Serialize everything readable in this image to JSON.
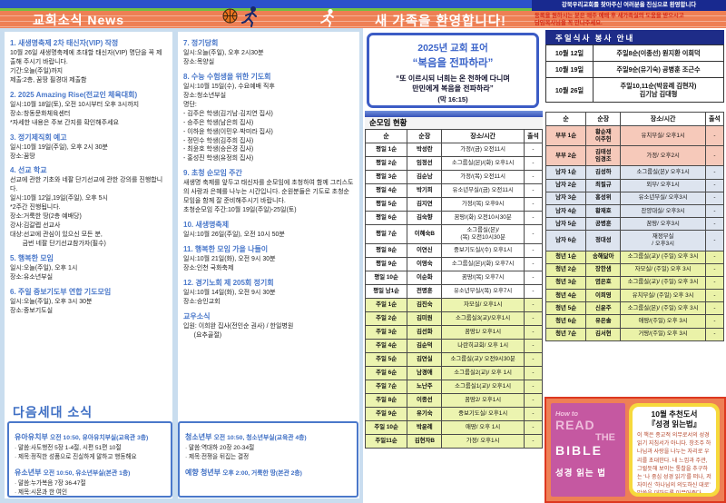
{
  "header": {
    "news_title": "교회소식 News",
    "welcome_banner": "새 가족을 환영합니다!",
    "welcome_line1": "강북우리교회를 찾아주신 여러분을 진심으로 환영합니다",
    "welcome_line2": "등록을 원하시는 분은 매주 예배 후 새가족실의 도움을 받으시고\n담임목사님을 꼭 만나주세요."
  },
  "news_col1": [
    {
      "title": "1. 새생명축제 2차 태신자(VIP) 작정",
      "lines": [
        " 10월 26일 새생명축제에 초대할 태신자(VIP) 명단을 꼭 제출해 주시기 바랍니다.",
        "기간:오늘(주일)까지",
        "제출:2층, 꿈땅 필경대 제출함"
      ]
    },
    {
      "title": "2. 2025 Amazing Rise(전교인 체육대회)",
      "lines": [
        "일시:10월 18일(토), 오전 10시부터 오후 3시까지",
        "장소:창동문화체육센터",
        "*자세한 내용은 주보 간지를 확인해주세요"
      ]
    },
    {
      "title": "3. 정기제직회 예고",
      "lines": [
        "일시:10월 19일(주일), 오후 2시 30분",
        "장소:꿈땅"
      ]
    },
    {
      "title": "4. 선교 학교",
      "lines": [
        " 선교에 관한 기초와 네팔 단기선교에 관한 강의를 진행합니다.",
        "일시:10월 12일,19일(주일), 오후 5시",
        "*2주간 진행됩니다.",
        "장소:거룩한 땅(2층 예배당)",
        "강사:김갈렙 선교사",
        "대상:선교에 관심이 있으신 모든 분,\n       금번 네팔 단기선교참가자(필수)"
      ]
    },
    {
      "title": "5. 행복한 모임",
      "lines": [
        "일시:오늘(주일), 오후 1시",
        "장소:유소년부실"
      ]
    },
    {
      "title": "6. 주일 중보기도부 연합 기도모임",
      "lines": [
        "일시:오늘(주일), 오후 3시 30분",
        "장소:중보기도실"
      ]
    }
  ],
  "news_col2": [
    {
      "title": "7. 정기당회",
      "lines": [
        "일시:오늘(주일), 오후 2시30분",
        "장소:목양실"
      ]
    },
    {
      "title": "8. 수능 수험생을 위한 기도회",
      "lines": [
        "일시:10월 15일(수), 수요예배 직후",
        "장소:청소년부실",
        "명단:",
        "- 김주은 학생(김기남·김지연 집사)\n- 승주은 학생(남은희 집사)\n- 이하윤 학생(이민우·박미라 집사)\n- 정민수 학생(김주희 집사)\n- 최윤호 학생(승은경 집사)\n- 홍성진 학생(유정희 집사)"
      ]
    },
    {
      "title": "9. 초청 순모임 주간",
      "lines": [
        " 새생명 축제를 앞두고 태신자를 순모임에 초청하여 함께 그리스도의 사랑과 은혜를 나누는 시간입니다. 순원분들은 기도로 초청순모임을 함께 잘 준비해주시기 바랍니다.",
        "초청순모임 주간:10월 19일(주일)-25일(토)"
      ]
    },
    {
      "title": "10. 새생명축제",
      "lines": [
        "일시:10월 26일(주일), 오전 10시 50분"
      ]
    },
    {
      "title": "11. 행복한 모임 가을 나들이",
      "lines": [
        "일시:10월 21일(화), 오전 9시 30분",
        "장소:인천 국화축제"
      ]
    },
    {
      "title": "12. 경기노회 제 205회 정기회",
      "lines": [
        "일시:10월 14일(화), 오전 9시 30분",
        "장소:승인교회"
      ]
    },
    {
      "title": "교우소식",
      "lines": [
        "입원: 이희완 집사(전인순 권사) / 한일병원\n      (요추골절)"
      ]
    }
  ],
  "next_gen": {
    "title": "다음세대 소식",
    "left_groups": [
      {
        "name": "유아유치부",
        "info": "오전 10:50, 유아유치부실(교육관 3층)",
        "lines": [
          "· 말씀:사도행전 5장 1-4절, 시편 51편 10절",
          "· 제목:정직한 성품으로 진실하게 말하고 행동해요"
        ]
      },
      {
        "name": "유소년부",
        "info": "오전 10:50, 유소년부실(본관 1층)",
        "lines": [
          "· 말씀:누가복음 7장 36-47절",
          "· 제목:시몬과 한 여인"
        ]
      }
    ],
    "right_groups": [
      {
        "name": "청소년부",
        "info": "오전 10:50, 청소년부실(교육관 4층)",
        "lines": [
          "· 말씀:역대하 20장 20-34절",
          "· 제목:전쟁을 뒤집는 결정"
        ]
      },
      {
        "name": "예향 청년부",
        "info": "오후 2:00, 거룩한 땅(본관 2층)",
        "lines": []
      }
    ]
  },
  "motto": {
    "line1": "2025년 교회 표어",
    "line2": "“복음을 전파하라”",
    "quote": "“또 이르시되 너희는 온 천하에 다니며\n만민에게 복음을 전파하라”",
    "ref": "(막 16:15)"
  },
  "meal": {
    "title": "주일식사 봉사 안내",
    "rows": [
      {
        "date": "10월 12일",
        "crew": "주일8순(이종선)  원지환 이희덕"
      },
      {
        "date": "10월 19일",
        "crew": "주일9순(유기숙)  공병훈 조근수"
      },
      {
        "date": "10월 26일",
        "crew": "주일10,11순(박윤례 김현자)\n김기남 김대형"
      }
    ]
  },
  "groups_main": {
    "title": "순모임 현황",
    "headers": [
      "순",
      "순장",
      "장소/시간",
      "출석"
    ],
    "rows": [
      {
        "no": "평일 1순",
        "leader": "박성란",
        "place": "가정/(금) 오전11시",
        "att": "-",
        "type": "weekday"
      },
      {
        "no": "평일 2순",
        "leader": "임정선",
        "place": "소그룹실(본)/(화) 오후1시",
        "att": "-",
        "type": "weekday"
      },
      {
        "no": "평일 3순",
        "leader": "김순남",
        "place": "가정/(목) 오전11시",
        "att": "-",
        "type": "weekday"
      },
      {
        "no": "평일 4순",
        "leader": "박기희",
        "place": "유소년부실/(금) 오전11시",
        "att": "-",
        "type": "weekday"
      },
      {
        "no": "평일 5순",
        "leader": "김지연",
        "place": "가정/(목) 오후9시",
        "att": "-",
        "type": "weekday"
      },
      {
        "no": "평일 6순",
        "leader": "김숙향",
        "place": "꿈땅/(화) 오전10시30분",
        "att": "-",
        "type": "weekday"
      },
      {
        "no": "평일 7순",
        "leader": "이혜숙B",
        "place": "소그룹실(본)/\n(목) 오전10시30분",
        "att": "-",
        "type": "weekday"
      },
      {
        "no": "평일 8순",
        "leader": "이연신",
        "place": "중보기도실/(수) 오후1시",
        "att": "-",
        "type": "weekday"
      },
      {
        "no": "평일 9순",
        "leader": "이영숙",
        "place": "소그룹실(본)/(화) 오후7시",
        "att": "-",
        "type": "weekday"
      },
      {
        "no": "평일 10순",
        "leader": "이순화",
        "place": "꿈땅/(목) 오후7시",
        "att": "-",
        "type": "weekday"
      },
      {
        "no": "평일 남1순",
        "leader": "전명훈",
        "place": "유소년부실/(목) 오후7시",
        "att": "-",
        "type": "weekday"
      },
      {
        "no": "주일 1순",
        "leader": "김진숙",
        "place": "자모실/ 오후1시",
        "att": "-",
        "type": "sunday"
      },
      {
        "no": "주일 2순",
        "leader": "김미원",
        "place": "소그룹실3(교)/오후1시",
        "att": "-",
        "type": "sunday"
      },
      {
        "no": "주일 3순",
        "leader": "김선화",
        "place": "꿈땅1/ 오후1시",
        "att": "-",
        "type": "sunday"
      },
      {
        "no": "주일 4순",
        "leader": "김순덕",
        "place": "나란히교회/ 오후 1시",
        "att": "-",
        "type": "sunday"
      },
      {
        "no": "주일 5순",
        "leader": "김연실",
        "place": "소그룹실(교)/ 오전9시30분",
        "att": "-",
        "type": "sunday"
      },
      {
        "no": "주일 6순",
        "leader": "남경애",
        "place": "소그룹실2(교)/ 오후 1시",
        "att": "-",
        "type": "sunday"
      },
      {
        "no": "주일 7순",
        "leader": "노난주",
        "place": "소그룹실1(교)/ 오후1시",
        "att": "-",
        "type": "sunday"
      },
      {
        "no": "주일 8순",
        "leader": "이종선",
        "place": "꿈땅2/ 오후1시",
        "att": "-",
        "type": "sunday"
      },
      {
        "no": "주일 9순",
        "leader": "유기숙",
        "place": "중보기도실/ 오후1시",
        "att": "-",
        "type": "sunday"
      },
      {
        "no": "주일 10순",
        "leader": "박윤례",
        "place": "애땅/ 오후 1시",
        "att": "-",
        "type": "sunday"
      },
      {
        "no": "주일11순",
        "leader": "김현자B",
        "place": "가정/ 오후1시",
        "att": "-",
        "type": "sunday"
      }
    ]
  },
  "groups_right": {
    "headers": [
      "순",
      "순장",
      "장소/시간",
      "출석"
    ],
    "rows": [
      {
        "no": "부부 1순",
        "leader": "황순재\n이주헌",
        "place": "유치부실/ 오후1시",
        "att": "-",
        "type": "couple"
      },
      {
        "no": "부부 2순",
        "leader": "김태성\n임경조",
        "place": "가정/ 오후2시",
        "att": "-",
        "type": "couple"
      },
      {
        "no": "남자 1순",
        "leader": "김성하",
        "place": "소그룹실(본)/ 오후1시",
        "att": "-",
        "type": "man"
      },
      {
        "no": "남자 2순",
        "leader": "최필규",
        "place": "외부/ 오후1시",
        "att": "-",
        "type": "man"
      },
      {
        "no": "남자 3순",
        "leader": "홍성위",
        "place": "유소년부실/ 오후3시",
        "att": "-",
        "type": "man"
      },
      {
        "no": "남자 4순",
        "leader": "황재호",
        "place": "찬양대실/ 오후3시",
        "att": "-",
        "type": "man"
      },
      {
        "no": "남자 5순",
        "leader": "공병훈",
        "place": "꿈땅/ 오후3시",
        "att": "-",
        "type": "man"
      },
      {
        "no": "남자 6순",
        "leader": "정대성",
        "place": "재정부실\n/ 오후3시",
        "att": "-",
        "type": "man"
      },
      {
        "no": "청년 1순",
        "leader": "송해닮아",
        "place": "소그룹실(교)/ (주일) 오후 3시",
        "att": "-",
        "type": "youth"
      },
      {
        "no": "청년 2순",
        "leader": "장한샘",
        "place": "자모실/ (주일) 오후 3시",
        "att": "-",
        "type": "youth"
      },
      {
        "no": "청년 3순",
        "leader": "염은호",
        "place": "소그룹실(교)/ (주일) 오후 3시",
        "att": "-",
        "type": "youth"
      },
      {
        "no": "청년 4순",
        "leader": "이희영",
        "place": "유치부실/ (주일) 오후 3시",
        "att": "-",
        "type": "youth"
      },
      {
        "no": "청년 5순",
        "leader": "신윤주",
        "place": "소그룹실(본)/ (주일) 오후 3시",
        "att": "-",
        "type": "youth"
      },
      {
        "no": "청년 6순",
        "leader": "유은솔",
        "place": "애땅/(주일) 오후 3시",
        "att": "-",
        "type": "youth"
      },
      {
        "no": "청년 7순",
        "leader": "김서현",
        "place": "거땅/(주일) 오후 3시",
        "att": "-",
        "type": "youth"
      }
    ]
  },
  "book": {
    "title_line1": "10월 추천도서",
    "title_line2": "『성경 읽는법』",
    "desc": "이 책은 종교적 의무로서의 성경 읽기 지침서가 아니다. 창조주 하나님과 사랑을 나누는 자리로 우리를 초대한다. 내 느낌과 주관, 그럴듯해 보이는 통찰을 추구하는 ‘나 중심 성경 읽기’를 떠나, 저자이신 ‘하나님의 의도하신 대로’ 말씀을 대하도록 이끌어준다.",
    "cover": {
      "l1": "How to",
      "l2": "READ",
      "l3": "THE",
      "l4": "BIBLE",
      "l5": "성경 읽는 법"
    }
  }
}
